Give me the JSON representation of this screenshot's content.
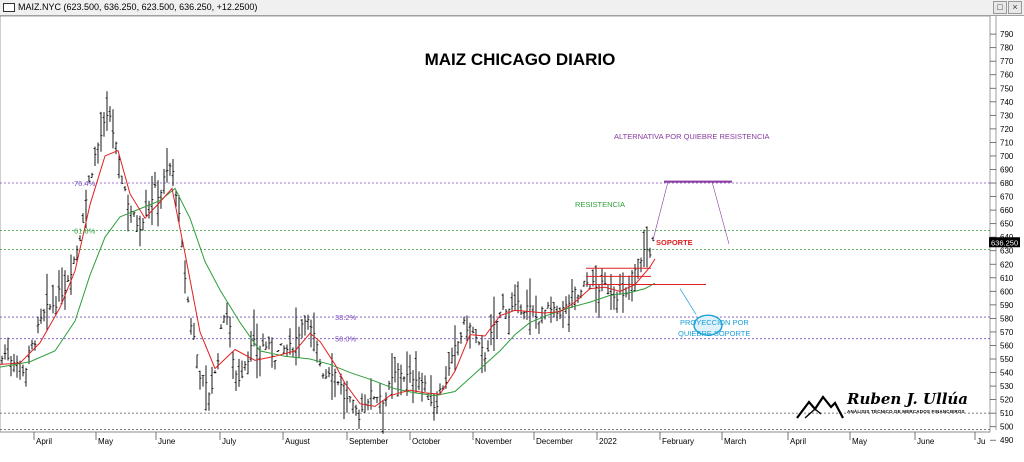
{
  "window": {
    "symbol_info": "MAIZ.NYC (623.500, 636.250, 623.500, 636.250, +12.2500)",
    "buttons": [
      "□",
      "×"
    ]
  },
  "colors": {
    "bars": "#000000",
    "ma_fast": "#e02020",
    "ma_slow": "#2e9e3a",
    "fib": "#7b4fc0",
    "resistance": "#2e9e3a",
    "support": "#e02020",
    "projection": "#1aa0d8",
    "alternative": "#8a3aa0"
  },
  "chart_data": {
    "type": "ohlc",
    "title": "MAIZ CHICAGO DIARIO",
    "y_axis": {
      "ylim": [
        485,
        796
      ],
      "ticks": [
        490,
        500,
        510,
        520,
        530,
        540,
        550,
        560,
        570,
        580,
        590,
        600,
        610,
        620,
        630,
        640,
        650,
        660,
        670,
        680,
        690,
        700,
        710,
        720,
        730,
        740,
        750,
        760,
        770,
        780,
        790
      ]
    },
    "last_price": "636.250",
    "x_axis": {
      "labels": [
        "April",
        "May",
        "June",
        "July",
        "August",
        "September",
        "October",
        "November",
        "December",
        "2022",
        "February",
        "March",
        "April",
        "May",
        "June",
        "Ju"
      ]
    },
    "close_series": [
      [
        0,
        548
      ],
      [
        5,
        554
      ],
      [
        10,
        552
      ],
      [
        15,
        550
      ],
      [
        20,
        545
      ],
      [
        25,
        541
      ],
      [
        30,
        555
      ],
      [
        35,
        565
      ],
      [
        40,
        575
      ],
      [
        45,
        584
      ],
      [
        50,
        588
      ],
      [
        55,
        592
      ],
      [
        60,
        598
      ],
      [
        65,
        604
      ],
      [
        70,
        615
      ],
      [
        75,
        626
      ],
      [
        80,
        641
      ],
      [
        85,
        664
      ],
      [
        90,
        684
      ],
      [
        95,
        700
      ],
      [
        100,
        713
      ],
      [
        105,
        723
      ],
      [
        110,
        730
      ],
      [
        115,
        710
      ],
      [
        120,
        688
      ],
      [
        125,
        675
      ],
      [
        130,
        662
      ],
      [
        135,
        652
      ],
      [
        140,
        650
      ],
      [
        145,
        658
      ],
      [
        150,
        668
      ],
      [
        155,
        674
      ],
      [
        160,
        672
      ],
      [
        165,
        684
      ],
      [
        170,
        692
      ],
      [
        175,
        682
      ],
      [
        180,
        646
      ],
      [
        185,
        611
      ],
      [
        190,
        580
      ],
      [
        195,
        562
      ],
      [
        200,
        540
      ],
      [
        205,
        530
      ],
      [
        210,
        525
      ],
      [
        215,
        538
      ],
      [
        220,
        563
      ],
      [
        225,
        590
      ],
      [
        230,
        570
      ],
      [
        235,
        540
      ],
      [
        240,
        536
      ],
      [
        245,
        548
      ],
      [
        250,
        556
      ],
      [
        255,
        561
      ],
      [
        260,
        557
      ],
      [
        265,
        561
      ],
      [
        270,
        556
      ],
      [
        275,
        553
      ],
      [
        280,
        556
      ],
      [
        285,
        557
      ],
      [
        290,
        557
      ],
      [
        295,
        563
      ],
      [
        300,
        573
      ],
      [
        305,
        583
      ],
      [
        310,
        572
      ],
      [
        315,
        564
      ],
      [
        320,
        548
      ],
      [
        325,
        537
      ],
      [
        330,
        544
      ],
      [
        335,
        540
      ],
      [
        340,
        532
      ],
      [
        345,
        520
      ],
      [
        350,
        517
      ],
      [
        355,
        513
      ],
      [
        360,
        508
      ],
      [
        365,
        520
      ],
      [
        370,
        522
      ],
      [
        375,
        524
      ],
      [
        380,
        524
      ],
      [
        385,
        519
      ],
      [
        390,
        530
      ],
      [
        395,
        538
      ],
      [
        400,
        542
      ],
      [
        405,
        537
      ],
      [
        410,
        536
      ],
      [
        415,
        539
      ],
      [
        420,
        536
      ],
      [
        425,
        528
      ],
      [
        430,
        521
      ],
      [
        435,
        515
      ],
      [
        440,
        526
      ],
      [
        445,
        533
      ],
      [
        450,
        543
      ],
      [
        455,
        556
      ],
      [
        460,
        566
      ],
      [
        465,
        576
      ],
      [
        470,
        573
      ],
      [
        475,
        566
      ],
      [
        480,
        556
      ],
      [
        485,
        553
      ],
      [
        490,
        564
      ],
      [
        495,
        574
      ],
      [
        500,
        583
      ],
      [
        505,
        590
      ],
      [
        510,
        588
      ],
      [
        515,
        586
      ],
      [
        520,
        589
      ],
      [
        525,
        588
      ],
      [
        530,
        586
      ],
      [
        535,
        580
      ],
      [
        540,
        582
      ],
      [
        545,
        585
      ],
      [
        550,
        585
      ],
      [
        555,
        583
      ],
      [
        560,
        586
      ],
      [
        565,
        586
      ],
      [
        570,
        594
      ],
      [
        575,
        598
      ],
      [
        580,
        596
      ],
      [
        585,
        606
      ],
      [
        590,
        606
      ],
      [
        595,
        602
      ],
      [
        600,
        603
      ],
      [
        605,
        603
      ],
      [
        610,
        601
      ],
      [
        615,
        599
      ],
      [
        620,
        598
      ],
      [
        625,
        592
      ],
      [
        630,
        608
      ],
      [
        635,
        615
      ],
      [
        640,
        624
      ],
      [
        645,
        631
      ],
      [
        650,
        630
      ],
      [
        654,
        636
      ]
    ],
    "ma_fast": [
      [
        0,
        546
      ],
      [
        20,
        547
      ],
      [
        40,
        562
      ],
      [
        60,
        588
      ],
      [
        75,
        615
      ],
      [
        90,
        664
      ],
      [
        105,
        700
      ],
      [
        118,
        704
      ],
      [
        130,
        672
      ],
      [
        145,
        654
      ],
      [
        160,
        666
      ],
      [
        172,
        676
      ],
      [
        185,
        628
      ],
      [
        200,
        570
      ],
      [
        215,
        543
      ],
      [
        235,
        557
      ],
      [
        255,
        549
      ],
      [
        275,
        552
      ],
      [
        295,
        556
      ],
      [
        310,
        569
      ],
      [
        320,
        563
      ],
      [
        335,
        546
      ],
      [
        345,
        532
      ],
      [
        360,
        517
      ],
      [
        375,
        515
      ],
      [
        390,
        523
      ],
      [
        410,
        527
      ],
      [
        425,
        525
      ],
      [
        440,
        524
      ],
      [
        455,
        541
      ],
      [
        470,
        568
      ],
      [
        485,
        567
      ],
      [
        500,
        582
      ],
      [
        515,
        586
      ],
      [
        530,
        585
      ],
      [
        545,
        584
      ],
      [
        560,
        585
      ],
      [
        575,
        592
      ],
      [
        590,
        602
      ],
      [
        605,
        603
      ],
      [
        620,
        600
      ],
      [
        635,
        605
      ],
      [
        650,
        618
      ],
      [
        655,
        624
      ]
    ],
    "ma_slow": [
      [
        0,
        544
      ],
      [
        30,
        548
      ],
      [
        55,
        556
      ],
      [
        75,
        578
      ],
      [
        90,
        612
      ],
      [
        105,
        640
      ],
      [
        120,
        655
      ],
      [
        140,
        661
      ],
      [
        160,
        667
      ],
      [
        175,
        676
      ],
      [
        190,
        654
      ],
      [
        205,
        622
      ],
      [
        220,
        601
      ],
      [
        240,
        577
      ],
      [
        260,
        556
      ],
      [
        285,
        552
      ],
      [
        310,
        550
      ],
      [
        330,
        546
      ],
      [
        350,
        540
      ],
      [
        370,
        535
      ],
      [
        395,
        528
      ],
      [
        415,
        525
      ],
      [
        435,
        523
      ],
      [
        455,
        526
      ],
      [
        470,
        536
      ],
      [
        485,
        546
      ],
      [
        500,
        556
      ],
      [
        515,
        568
      ],
      [
        530,
        577
      ],
      [
        550,
        583
      ],
      [
        570,
        588
      ],
      [
        590,
        592
      ],
      [
        610,
        597
      ],
      [
        630,
        599
      ],
      [
        645,
        602
      ],
      [
        655,
        606
      ]
    ],
    "fib_levels": [
      {
        "label": "76.4%",
        "value": 680
      },
      {
        "label": "61.8%",
        "value": 645
      },
      {
        "label": "38.2%",
        "value": 581
      },
      {
        "label": "50.0%",
        "value": 565
      }
    ],
    "horizontal_lines": [
      {
        "value": 631,
        "color": "#2e9e3a"
      },
      {
        "value": 510,
        "color": "#555555"
      },
      {
        "value": 498,
        "color": "#555555"
      }
    ],
    "annotations": {
      "resistencia": "RESISTENCIA",
      "soporte": "SOPORTE",
      "alternativa": "ALTERNATIVA POR QUIEBRE RESISTENCIA",
      "proyeccion_line1": "PROYECCION POR",
      "proyeccion_line2": "QUIEBRE SOPORTE"
    }
  },
  "logo": {
    "name": "Ruben J. Ullúa",
    "subtitle": "ANÁLISIS TÉCNICO DE MERCADOS FINANCIEROS"
  }
}
